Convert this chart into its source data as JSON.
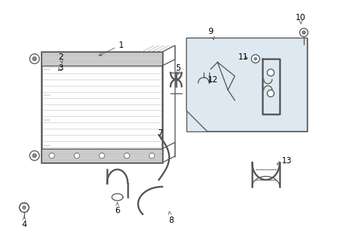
{
  "bg_color": "#ffffff",
  "line_color": "#555555",
  "box_bg": "#dde8f0",
  "label_color": "#000000",
  "lw": 1.0,
  "lw_thick": 1.8,
  "font_size": 8.5
}
